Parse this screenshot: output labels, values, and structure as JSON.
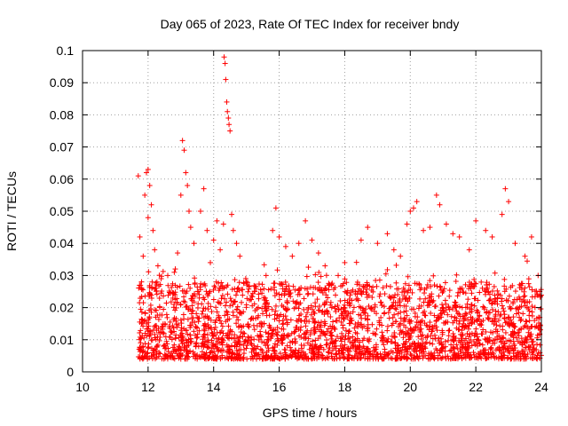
{
  "chart_data": {
    "type": "scatter",
    "title": "Day 065 of 2023, Rate Of TEC Index for receiver bndy",
    "xlabel": "GPS time / hours",
    "ylabel": "ROTI / TECUs",
    "xlim": [
      10,
      24
    ],
    "ylim": [
      0,
      0.1
    ],
    "xticks": [
      10,
      12,
      14,
      16,
      18,
      20,
      22,
      24
    ],
    "yticks": [
      0,
      0.01,
      0.02,
      0.03,
      0.04,
      0.05,
      0.06,
      0.07,
      0.08,
      0.09,
      0.1
    ],
    "xtick_labels": [
      "10",
      "12",
      "14",
      "16",
      "18",
      "20",
      "22",
      "24"
    ],
    "ytick_labels": [
      "0",
      "0.01",
      "0.02",
      "0.03",
      "0.04",
      "0.05",
      "0.06",
      "0.07",
      "0.08",
      "0.09",
      "0.1"
    ],
    "grid": true,
    "marker": "+",
    "color": "#ff0000",
    "series": [
      {
        "name": "ROTI",
        "points": [
          [
            11.7,
            0.061
          ],
          [
            11.75,
            0.042
          ],
          [
            11.8,
            0.028
          ],
          [
            11.8,
            0.015
          ],
          [
            11.85,
            0.036
          ],
          [
            11.9,
            0.055
          ],
          [
            11.95,
            0.062
          ],
          [
            12.0,
            0.063
          ],
          [
            12.0,
            0.048
          ],
          [
            12.05,
            0.058
          ],
          [
            12.1,
            0.052
          ],
          [
            12.15,
            0.044
          ],
          [
            12.2,
            0.038
          ],
          [
            12.3,
            0.033
          ],
          [
            12.4,
            0.029
          ],
          [
            12.6,
            0.03
          ],
          [
            12.8,
            0.031
          ],
          [
            12.9,
            0.037
          ],
          [
            13.0,
            0.055
          ],
          [
            13.05,
            0.072
          ],
          [
            13.1,
            0.069
          ],
          [
            13.15,
            0.062
          ],
          [
            13.2,
            0.058
          ],
          [
            13.25,
            0.05
          ],
          [
            13.3,
            0.045
          ],
          [
            13.4,
            0.04
          ],
          [
            13.6,
            0.05
          ],
          [
            13.7,
            0.057
          ],
          [
            13.8,
            0.044
          ],
          [
            13.9,
            0.034
          ],
          [
            14.0,
            0.041
          ],
          [
            14.1,
            0.047
          ],
          [
            14.2,
            0.038
          ],
          [
            14.3,
            0.046
          ],
          [
            14.32,
            0.098
          ],
          [
            14.35,
            0.096
          ],
          [
            14.37,
            0.091
          ],
          [
            14.4,
            0.084
          ],
          [
            14.42,
            0.081
          ],
          [
            14.45,
            0.079
          ],
          [
            14.47,
            0.077
          ],
          [
            14.5,
            0.075
          ],
          [
            14.55,
            0.049
          ],
          [
            14.6,
            0.044
          ],
          [
            14.7,
            0.04
          ],
          [
            14.8,
            0.036
          ],
          [
            15.0,
            0.028
          ],
          [
            15.3,
            0.026
          ],
          [
            15.6,
            0.03
          ],
          [
            15.8,
            0.044
          ],
          [
            15.9,
            0.051
          ],
          [
            16.0,
            0.042
          ],
          [
            16.2,
            0.039
          ],
          [
            16.4,
            0.036
          ],
          [
            16.6,
            0.04
          ],
          [
            16.8,
            0.047
          ],
          [
            17.0,
            0.041
          ],
          [
            17.2,
            0.037
          ],
          [
            17.4,
            0.033
          ],
          [
            17.8,
            0.03
          ],
          [
            18.0,
            0.034
          ],
          [
            18.5,
            0.041
          ],
          [
            18.7,
            0.045
          ],
          [
            19.0,
            0.04
          ],
          [
            19.3,
            0.043
          ],
          [
            19.5,
            0.038
          ],
          [
            19.7,
            0.036
          ],
          [
            19.9,
            0.046
          ],
          [
            20.0,
            0.05
          ],
          [
            20.1,
            0.051
          ],
          [
            20.2,
            0.053
          ],
          [
            20.4,
            0.044
          ],
          [
            20.6,
            0.045
          ],
          [
            20.8,
            0.055
          ],
          [
            20.9,
            0.052
          ],
          [
            21.1,
            0.046
          ],
          [
            21.3,
            0.043
          ],
          [
            21.5,
            0.042
          ],
          [
            21.8,
            0.038
          ],
          [
            22.0,
            0.047
          ],
          [
            22.3,
            0.044
          ],
          [
            22.5,
            0.042
          ],
          [
            22.8,
            0.049
          ],
          [
            22.9,
            0.057
          ],
          [
            23.0,
            0.053
          ],
          [
            23.2,
            0.04
          ],
          [
            23.5,
            0.036
          ],
          [
            23.7,
            0.042
          ],
          [
            23.9,
            0.03
          ],
          [
            23.95,
            0.025
          ]
        ]
      }
    ],
    "dense_band": {
      "x_start": 11.7,
      "x_end": 24.0,
      "y_floor": 0.004,
      "y_typical_max": 0.028,
      "description_values": "dense cloud of ROTI values concentrated between 0.005 and 0.025"
    }
  }
}
